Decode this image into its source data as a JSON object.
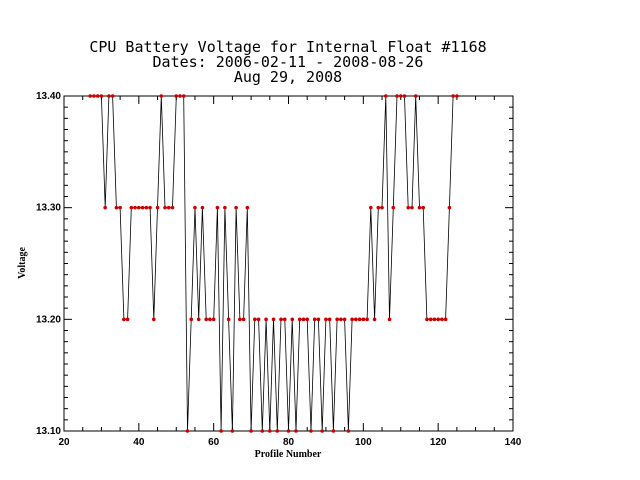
{
  "chart_data": {
    "type": "line",
    "title_lines": [
      "CPU Battery Voltage for Internal Float #1168",
      "Dates:  2006-02-11 -  2008-08-26",
      "Aug 29, 2008"
    ],
    "xlabel": "Profile Number",
    "ylabel": "Voltage",
    "xlim": [
      20,
      140
    ],
    "ylim": [
      13.1,
      13.4
    ],
    "x_ticks": [
      20,
      40,
      60,
      80,
      100,
      120,
      140
    ],
    "y_ticks": [
      13.1,
      13.2,
      13.3,
      13.4
    ],
    "y_tick_labels": [
      "13.10",
      "13.20",
      "13.30",
      "13.40"
    ],
    "grid": false,
    "marker_color": "#cc0000",
    "line_color": "#000000",
    "series": [
      {
        "x": [
          27,
          28,
          29,
          30,
          31,
          32,
          33,
          34,
          35,
          36,
          37,
          38,
          39,
          40,
          41,
          42,
          43,
          44,
          45,
          46,
          47,
          48,
          49,
          50,
          51,
          52,
          53,
          54,
          55,
          56,
          57,
          58,
          59,
          60,
          61,
          62,
          63,
          64,
          65,
          66,
          67,
          68,
          69,
          70,
          71,
          72,
          73,
          74,
          75,
          76,
          77,
          78,
          79,
          80,
          81,
          82,
          83,
          84,
          85,
          86,
          87,
          88,
          89,
          90,
          91,
          92,
          93,
          94,
          95,
          96,
          97,
          98,
          99,
          100,
          101,
          102,
          103,
          104,
          105,
          106,
          107,
          108,
          109,
          110,
          111,
          112,
          113,
          114,
          115,
          116,
          117,
          118,
          119,
          120,
          121,
          122,
          123,
          124,
          125
        ],
        "y": [
          13.4,
          13.4,
          13.4,
          13.4,
          13.3,
          13.4,
          13.4,
          13.3,
          13.3,
          13.2,
          13.2,
          13.3,
          13.3,
          13.3,
          13.3,
          13.3,
          13.3,
          13.2,
          13.3,
          13.4,
          13.3,
          13.3,
          13.3,
          13.4,
          13.4,
          13.4,
          13.1,
          13.2,
          13.3,
          13.2,
          13.3,
          13.2,
          13.2,
          13.2,
          13.3,
          13.1,
          13.3,
          13.2,
          13.1,
          13.3,
          13.2,
          13.2,
          13.3,
          13.1,
          13.2,
          13.2,
          13.1,
          13.2,
          13.1,
          13.2,
          13.1,
          13.2,
          13.2,
          13.1,
          13.2,
          13.1,
          13.2,
          13.2,
          13.2,
          13.1,
          13.2,
          13.2,
          13.1,
          13.2,
          13.2,
          13.1,
          13.2,
          13.2,
          13.2,
          13.1,
          13.2,
          13.2,
          13.2,
          13.2,
          13.2,
          13.3,
          13.2,
          13.3,
          13.3,
          13.4,
          13.2,
          13.3,
          13.4,
          13.4,
          13.4,
          13.3,
          13.3,
          13.4,
          13.3,
          13.3,
          13.2,
          13.2,
          13.2,
          13.2,
          13.2,
          13.2,
          13.3,
          13.4,
          13.4
        ]
      }
    ]
  }
}
